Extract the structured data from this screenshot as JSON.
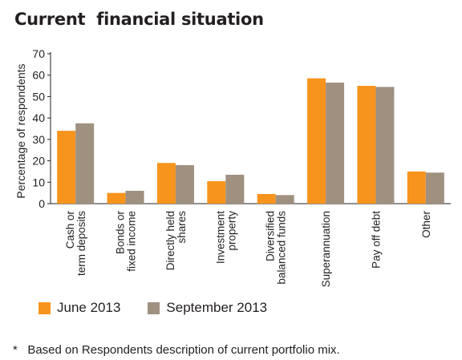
{
  "title": "Current  financial situation",
  "chart_data": {
    "type": "bar",
    "categories": [
      [
        "Cash or",
        "term deposits"
      ],
      [
        "Bonds or",
        "fixed income"
      ],
      [
        "Directly held",
        "shares"
      ],
      [
        "Investment",
        "property"
      ],
      [
        "Diversified",
        "balanced funds"
      ],
      [
        "Superannuation"
      ],
      [
        "Pay off debt"
      ],
      [
        "Other"
      ]
    ],
    "series": [
      {
        "name": "June 2013",
        "color": "#f7941d",
        "values": [
          34,
          5,
          19,
          10.5,
          4.5,
          58.5,
          55,
          15
        ]
      },
      {
        "name": "September 2013",
        "color": "#a09080",
        "values": [
          37.5,
          6,
          18,
          13.5,
          4,
          56.5,
          54.5,
          14.5
        ]
      }
    ],
    "ylabel": "Percentage of respondents",
    "xlabel": "",
    "ylim": [
      0,
      70
    ],
    "yticks": [
      0,
      10,
      20,
      30,
      40,
      50,
      60,
      70
    ],
    "grid": false,
    "legend_position": "bottom-left"
  },
  "footnote": "*   Based on Respondents description of current portfolio mix."
}
